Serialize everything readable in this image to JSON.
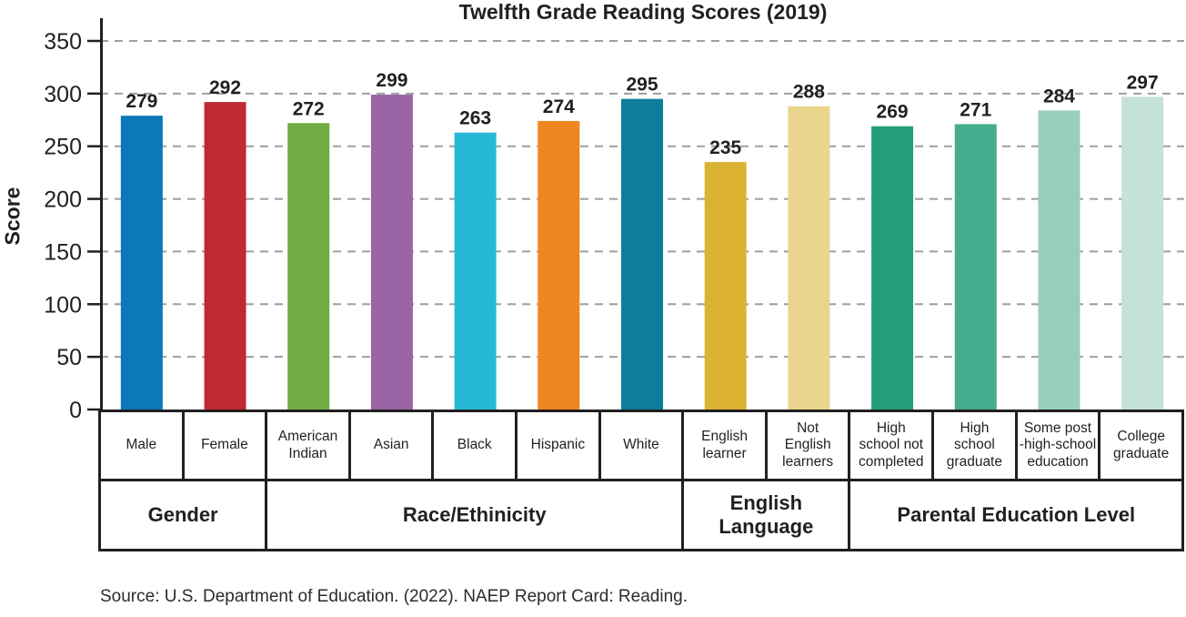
{
  "chart_data": {
    "type": "bar",
    "title": "Twelfth Grade Reading Scores (2019)",
    "ylabel": "Score",
    "xlabel": "",
    "ylim": [
      0,
      350
    ],
    "yticks": [
      0,
      50,
      100,
      150,
      200,
      250,
      300,
      350
    ],
    "grid": "horizontal-dashed",
    "legend": "none",
    "bar_value_labels": true,
    "groups": [
      {
        "label": "Gender",
        "categories": [
          {
            "name": "Male",
            "display": "Male",
            "value": 279,
            "color": "#0b78b9"
          },
          {
            "name": "Female",
            "display": "Female",
            "value": 292,
            "color": "#bf2a31"
          }
        ]
      },
      {
        "label": "Race/Ethinicity",
        "categories": [
          {
            "name": "American Indian",
            "display": "American\nIndian",
            "value": 272,
            "color": "#73ab43"
          },
          {
            "name": "Asian",
            "display": "Asian",
            "value": 299,
            "color": "#9b64a6"
          },
          {
            "name": "Black",
            "display": "Black",
            "value": 263,
            "color": "#26b9d7"
          },
          {
            "name": "Hispanic",
            "display": "Hispanic",
            "value": 274,
            "color": "#f0861f"
          },
          {
            "name": "White",
            "display": "White",
            "value": 295,
            "color": "#0d7e9a"
          }
        ]
      },
      {
        "label": "English\nLanguage",
        "categories": [
          {
            "name": "English learner",
            "display": "English\nlearner",
            "value": 235,
            "color": "#dcb233"
          },
          {
            "name": "Not English learners",
            "display": "Not\nEnglish\nlearners",
            "value": 288,
            "color": "#ead58c"
          }
        ]
      },
      {
        "label": "Parental Education Level",
        "categories": [
          {
            "name": "High school not completed",
            "display": "High\nschool not\ncompleted",
            "value": 269,
            "color": "#239e7b"
          },
          {
            "name": "High school graduate",
            "display": "High\nschool\ngraduate",
            "value": 271,
            "color": "#47ad8f"
          },
          {
            "name": "Some post-high-school education",
            "display": "Some post\n-high-school\neducation",
            "value": 284,
            "color": "#99cebc"
          },
          {
            "name": "College graduate",
            "display": "College\ngraduate",
            "value": 297,
            "color": "#c4e2d8"
          }
        ]
      }
    ],
    "source": "Source: U.S. Department of Education. (2022). NAEP Report Card: Reading.",
    "colors_meta": {
      "axis": "#231f20",
      "gridline": "#9e9e9e",
      "value_label": "#231f20"
    }
  }
}
